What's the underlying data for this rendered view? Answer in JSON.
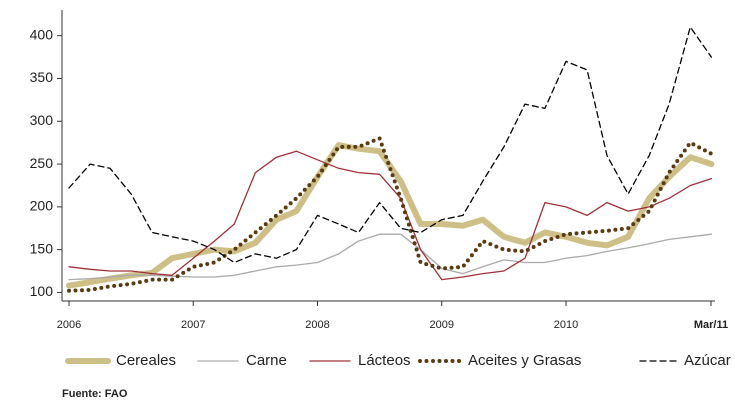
{
  "chart_data": {
    "type": "line",
    "x": [
      2006,
      2006.17,
      2006.33,
      2006.5,
      2006.67,
      2006.83,
      2007,
      2007.17,
      2007.33,
      2007.5,
      2007.67,
      2007.83,
      2008,
      2008.17,
      2008.33,
      2008.5,
      2008.67,
      2008.83,
      2009,
      2009.17,
      2009.33,
      2009.5,
      2009.67,
      2009.83,
      2010,
      2010.17,
      2010.33,
      2010.5,
      2010.67,
      2010.83,
      2011,
      2011.17
    ],
    "series": [
      {
        "name": "Cereales",
        "color": "#cdbf86",
        "style": "solid",
        "width": 6,
        "values": [
          108,
          112,
          116,
          120,
          123,
          140,
          145,
          150,
          148,
          158,
          185,
          195,
          235,
          272,
          268,
          265,
          230,
          180,
          180,
          178,
          185,
          165,
          158,
          170,
          165,
          158,
          155,
          165,
          210,
          235,
          258,
          250
        ]
      },
      {
        "name": "Carne",
        "color": "#aaaaaa",
        "style": "solid",
        "width": 1.3,
        "values": [
          115,
          116,
          118,
          120,
          120,
          119,
          118,
          118,
          120,
          125,
          130,
          132,
          135,
          145,
          160,
          168,
          168,
          150,
          128,
          122,
          130,
          138,
          135,
          135,
          140,
          143,
          148,
          152,
          157,
          162,
          165,
          168
        ]
      },
      {
        "name": "Lácteos",
        "color": "#a0303a",
        "style": "solid",
        "width": 1.3,
        "values": [
          130,
          127,
          125,
          125,
          122,
          120,
          140,
          160,
          180,
          240,
          258,
          265,
          255,
          245,
          240,
          238,
          210,
          150,
          115,
          118,
          122,
          125,
          140,
          205,
          200,
          190,
          205,
          195,
          200,
          210,
          225,
          233
        ]
      },
      {
        "name": "Aceites y Grasas",
        "color": "#5a3a10",
        "style": "dotted",
        "width": 4,
        "values": [
          102,
          103,
          107,
          110,
          115,
          115,
          130,
          135,
          150,
          170,
          190,
          210,
          235,
          270,
          270,
          280,
          210,
          135,
          128,
          130,
          160,
          150,
          148,
          160,
          168,
          170,
          172,
          175,
          195,
          240,
          275,
          262
        ]
      },
      {
        "name": "Azúcar",
        "color": "#000000",
        "style": "dashed",
        "width": 1.3,
        "values": [
          222,
          250,
          245,
          215,
          170,
          165,
          160,
          150,
          135,
          145,
          140,
          150,
          190,
          180,
          170,
          205,
          175,
          170,
          185,
          190,
          230,
          270,
          320,
          315,
          370,
          360,
          260,
          215,
          260,
          320,
          410,
          375
        ]
      }
    ],
    "xlim": [
      2006,
      2011.167
    ],
    "xticks": [
      2006,
      2007,
      2008,
      2009,
      2010,
      {
        "value": 2011.167,
        "label": "Mar/11"
      }
    ],
    "ylim": [
      90,
      430
    ],
    "yticks": [
      100,
      150,
      200,
      250,
      300,
      350,
      400
    ],
    "grid": false,
    "legend": "bottom",
    "source": "Fuente: FAO"
  }
}
